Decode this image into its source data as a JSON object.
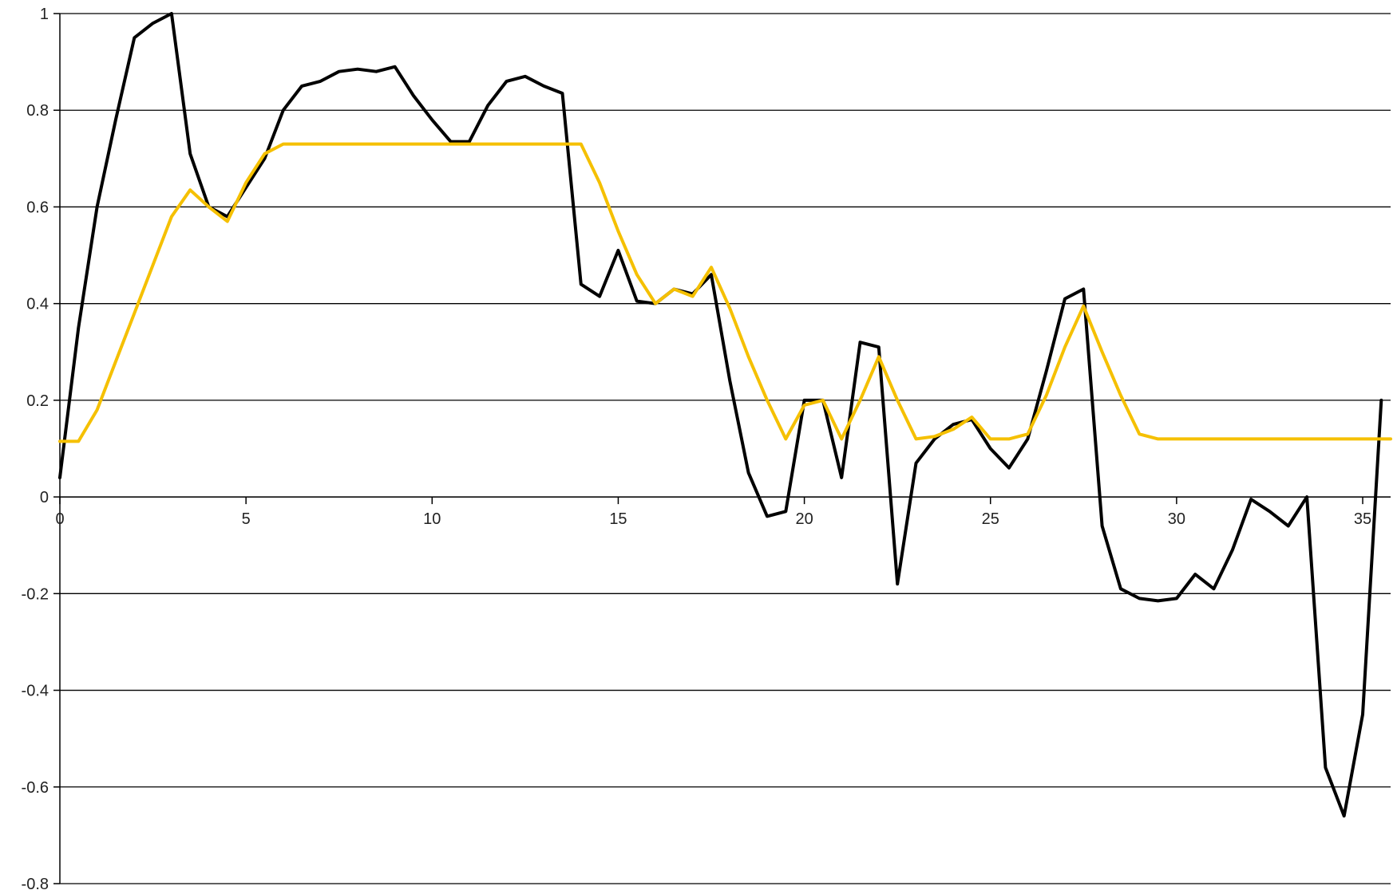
{
  "chart_data": {
    "type": "line",
    "title": "",
    "xlabel": "",
    "ylabel": "",
    "xlim": [
      0,
      35.75
    ],
    "ylim": [
      -0.8,
      1.0
    ],
    "x_ticks": [
      0,
      5,
      10,
      15,
      20,
      25,
      30,
      35
    ],
    "y_ticks": [
      -0.8,
      -0.6,
      -0.4,
      -0.2,
      0,
      0.2,
      0.4,
      0.6,
      0.8,
      1
    ],
    "y_tick_labels": [
      "-0.8",
      "-0.6",
      "-0.4",
      "-0.2",
      "0",
      "0.2",
      "0.4",
      "0.6",
      "0.8",
      "1"
    ],
    "x_tick_labels": [
      "0",
      "5",
      "10",
      "15",
      "20",
      "25",
      "30",
      "35"
    ],
    "grid": "horizontal",
    "legend": "none",
    "series": [
      {
        "color": "#000000",
        "points": [
          [
            0,
            0.04
          ],
          [
            0.5,
            0.35
          ],
          [
            1,
            0.6
          ],
          [
            1.5,
            0.78
          ],
          [
            2,
            0.95
          ],
          [
            2.5,
            0.98
          ],
          [
            3,
            1.0
          ],
          [
            3.5,
            0.71
          ],
          [
            4,
            0.6
          ],
          [
            4.5,
            0.58
          ],
          [
            5,
            0.64
          ],
          [
            5.5,
            0.7
          ],
          [
            6,
            0.8
          ],
          [
            6.5,
            0.85
          ],
          [
            7,
            0.86
          ],
          [
            7.5,
            0.88
          ],
          [
            8,
            0.885
          ],
          [
            8.5,
            0.88
          ],
          [
            9,
            0.89
          ],
          [
            9.5,
            0.83
          ],
          [
            10,
            0.78
          ],
          [
            10.5,
            0.735
          ],
          [
            11,
            0.735
          ],
          [
            11.5,
            0.81
          ],
          [
            12,
            0.86
          ],
          [
            12.5,
            0.87
          ],
          [
            13,
            0.85
          ],
          [
            13.5,
            0.835
          ],
          [
            14,
            0.44
          ],
          [
            14.5,
            0.415
          ],
          [
            15,
            0.51
          ],
          [
            15.5,
            0.405
          ],
          [
            16,
            0.4
          ],
          [
            16.5,
            0.43
          ],
          [
            17,
            0.42
          ],
          [
            17.5,
            0.46
          ],
          [
            18,
            0.24
          ],
          [
            18.5,
            0.05
          ],
          [
            19,
            -0.04
          ],
          [
            19.5,
            -0.03
          ],
          [
            20,
            0.2
          ],
          [
            20.5,
            0.2
          ],
          [
            21,
            0.04
          ],
          [
            21.5,
            0.32
          ],
          [
            22,
            0.31
          ],
          [
            22.5,
            -0.18
          ],
          [
            23,
            0.07
          ],
          [
            23.5,
            0.12
          ],
          [
            24,
            0.15
          ],
          [
            24.5,
            0.16
          ],
          [
            25,
            0.1
          ],
          [
            25.5,
            0.06
          ],
          [
            26,
            0.12
          ],
          [
            26.5,
            0.26
          ],
          [
            27,
            0.41
          ],
          [
            27.5,
            0.43
          ],
          [
            28,
            -0.06
          ],
          [
            28.5,
            -0.19
          ],
          [
            29,
            -0.21
          ],
          [
            29.5,
            -0.215
          ],
          [
            30,
            -0.21
          ],
          [
            30.5,
            -0.16
          ],
          [
            31,
            -0.19
          ],
          [
            31.5,
            -0.11
          ],
          [
            32,
            -0.005
          ],
          [
            32.5,
            -0.03
          ],
          [
            33,
            -0.06
          ],
          [
            33.5,
            0.0
          ],
          [
            34,
            -0.56
          ],
          [
            34.5,
            -0.66
          ],
          [
            35,
            -0.45
          ],
          [
            35.5,
            0.2
          ]
        ]
      },
      {
        "color": "#F5C000",
        "points": [
          [
            0,
            0.115
          ],
          [
            0.5,
            0.115
          ],
          [
            1,
            0.18
          ],
          [
            1.5,
            0.28
          ],
          [
            2,
            0.38
          ],
          [
            2.5,
            0.48
          ],
          [
            3,
            0.58
          ],
          [
            3.5,
            0.635
          ],
          [
            4,
            0.6
          ],
          [
            4.5,
            0.57
          ],
          [
            5,
            0.65
          ],
          [
            5.5,
            0.71
          ],
          [
            6,
            0.73
          ],
          [
            7,
            0.73
          ],
          [
            8,
            0.73
          ],
          [
            9,
            0.73
          ],
          [
            10,
            0.73
          ],
          [
            11,
            0.73
          ],
          [
            12,
            0.73
          ],
          [
            13,
            0.73
          ],
          [
            14,
            0.73
          ],
          [
            14.5,
            0.65
          ],
          [
            15,
            0.55
          ],
          [
            15.5,
            0.46
          ],
          [
            16,
            0.4
          ],
          [
            16.5,
            0.43
          ],
          [
            17,
            0.415
          ],
          [
            17.5,
            0.475
          ],
          [
            18,
            0.39
          ],
          [
            18.5,
            0.29
          ],
          [
            19,
            0.2
          ],
          [
            19.5,
            0.12
          ],
          [
            20,
            0.19
          ],
          [
            20.5,
            0.2
          ],
          [
            21,
            0.12
          ],
          [
            21.5,
            0.2
          ],
          [
            22,
            0.29
          ],
          [
            22.5,
            0.2
          ],
          [
            23,
            0.12
          ],
          [
            23.5,
            0.125
          ],
          [
            24,
            0.14
          ],
          [
            24.5,
            0.165
          ],
          [
            25,
            0.12
          ],
          [
            25.5,
            0.12
          ],
          [
            26,
            0.13
          ],
          [
            26.5,
            0.21
          ],
          [
            27,
            0.31
          ],
          [
            27.5,
            0.395
          ],
          [
            28,
            0.3
          ],
          [
            28.5,
            0.21
          ],
          [
            29,
            0.13
          ],
          [
            29.5,
            0.12
          ],
          [
            30,
            0.12
          ],
          [
            31,
            0.12
          ],
          [
            32,
            0.12
          ],
          [
            33,
            0.12
          ],
          [
            34,
            0.12
          ],
          [
            35,
            0.12
          ],
          [
            35.75,
            0.12
          ]
        ]
      }
    ]
  }
}
